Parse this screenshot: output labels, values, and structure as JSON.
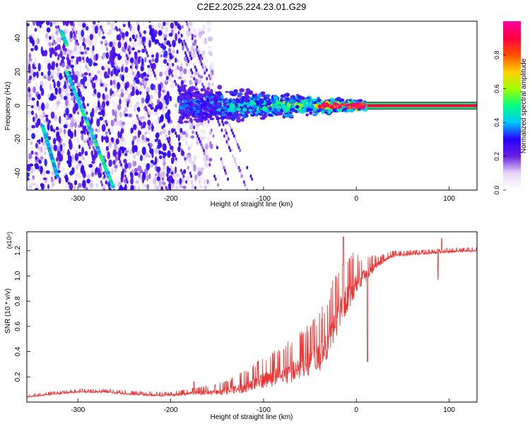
{
  "figure": {
    "title": "C2E2.2025.224.23.01.G29"
  },
  "chart_data": [
    {
      "type": "heatmap",
      "id": "spectrogram",
      "xlabel": "Height of straight line (km)",
      "ylabel": "Frequency (Hz)",
      "xlim": [
        -355,
        130
      ],
      "ylim": [
        -50,
        50
      ],
      "xticks": [
        -300,
        -200,
        -100,
        0,
        100
      ],
      "yticks": [
        -40,
        -20,
        0,
        20,
        40
      ],
      "colorbar": {
        "label": "Normalized spectral amplitude",
        "range": [
          0,
          1
        ],
        "ticks": [
          0.0,
          0.2,
          0.4,
          0.6,
          0.8
        ],
        "tick_labels": [
          "0.0",
          "0.2",
          "0.4",
          "0.6",
          "0.8"
        ],
        "colors": [
          "#ffffff",
          "#e6d5f7",
          "#6a1fe0",
          "#2b00ff",
          "#00c8ff",
          "#00ff80",
          "#a0ff00",
          "#ffd000",
          "#ff5000",
          "#ff0040",
          "#ff00a0"
        ]
      },
      "features": [
        {
          "name": "",
          "kind": "tone",
          "x_range": [
            0,
            130
          ],
          "freq": 0,
          "amplitude": 0.9
        },
        {
          "name": "",
          "kind": "band",
          "x_range": [
            -190,
            10
          ],
          "freq": 0,
          "spread_hz": [
            8,
            2
          ],
          "amplitude": [
            0.3,
            0.6
          ]
        },
        {
          "name": "",
          "kind": "diagonal",
          "points": [
            [
              -312,
              20
            ],
            [
              -262,
              -48
            ]
          ],
          "amplitude": 0.45
        },
        {
          "name": "",
          "kind": "diagonal",
          "points": [
            [
              -338,
              -12
            ],
            [
              -322,
              -42
            ]
          ],
          "amplitude": 0.4
        },
        {
          "name": "",
          "kind": "diagonal",
          "points": [
            [
              -318,
              44
            ],
            [
              -312,
              36
            ]
          ],
          "amplitude": 0.45
        }
      ]
    },
    {
      "type": "line",
      "id": "snr",
      "xlabel": "Height of straight line (km)",
      "ylabel": "SNR (10 * v/v)",
      "multiplier": "(x10⁴)",
      "xlim": [
        -355,
        130
      ],
      "ylim": [
        0,
        1.35
      ],
      "xticks": [
        -300,
        -200,
        -100,
        0,
        100
      ],
      "yticks": [
        0.2,
        0.4,
        0.6,
        0.8,
        1.0,
        1.2
      ],
      "ytick_labels": [
        "0.2",
        "0.4",
        "0.6",
        "0.8",
        "1.0",
        "1.2"
      ],
      "color": "#ee3333",
      "series": [
        {
          "name": "",
          "profile_x": [
            -355,
            -330,
            -300,
            -270,
            -240,
            -210,
            -190,
            -175,
            -160,
            -140,
            -120,
            -100,
            -80,
            -60,
            -40,
            -30,
            -20,
            -10,
            0,
            10,
            20,
            30,
            40,
            60,
            80,
            100,
            130
          ],
          "profile_y": [
            0.04,
            0.06,
            0.08,
            0.08,
            0.06,
            0.05,
            0.06,
            0.07,
            0.07,
            0.08,
            0.11,
            0.16,
            0.2,
            0.25,
            0.33,
            0.45,
            0.65,
            0.8,
            0.92,
            1.0,
            1.07,
            1.12,
            1.16,
            1.17,
            1.18,
            1.19,
            1.2
          ],
          "noise_x": [
            -355,
            -200,
            -150,
            -110,
            -60,
            -25,
            -10,
            5,
            25,
            45,
            130
          ],
          "noise_amp": [
            0.015,
            0.02,
            0.05,
            0.12,
            0.22,
            0.3,
            0.28,
            0.14,
            0.05,
            0.025,
            0.02
          ],
          "spikes": [
            [
              -175,
              0.16
            ],
            [
              -14,
              1.31
            ],
            [
              -22,
              1.0
            ],
            [
              12,
              0.32
            ],
            [
              92,
              1.3
            ],
            [
              88,
              0.97
            ]
          ]
        }
      ]
    }
  ]
}
